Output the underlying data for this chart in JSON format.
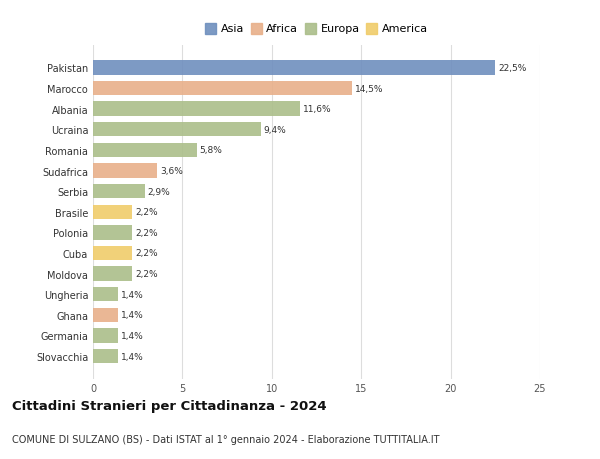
{
  "countries": [
    "Pakistan",
    "Marocco",
    "Albania",
    "Ucraina",
    "Romania",
    "Sudafrica",
    "Serbia",
    "Brasile",
    "Polonia",
    "Cuba",
    "Moldova",
    "Ungheria",
    "Ghana",
    "Germania",
    "Slovacchia"
  ],
  "values": [
    22.5,
    14.5,
    11.6,
    9.4,
    5.8,
    3.6,
    2.9,
    2.2,
    2.2,
    2.2,
    2.2,
    1.4,
    1.4,
    1.4,
    1.4
  ],
  "labels": [
    "22,5%",
    "14,5%",
    "11,6%",
    "9,4%",
    "5,8%",
    "3,6%",
    "2,9%",
    "2,2%",
    "2,2%",
    "2,2%",
    "2,2%",
    "1,4%",
    "1,4%",
    "1,4%",
    "1,4%"
  ],
  "continents": [
    "Asia",
    "Africa",
    "Europa",
    "Europa",
    "Europa",
    "Africa",
    "Europa",
    "America",
    "Europa",
    "America",
    "Europa",
    "Europa",
    "Africa",
    "Europa",
    "Europa"
  ],
  "colors": {
    "Asia": "#6f8fbe",
    "Africa": "#e8b08a",
    "Europa": "#abbe8a",
    "America": "#f0cc6a"
  },
  "legend_order": [
    "Asia",
    "Africa",
    "Europa",
    "America"
  ],
  "title": "Cittadini Stranieri per Cittadinanza - 2024",
  "subtitle": "COMUNE DI SULZANO (BS) - Dati ISTAT al 1° gennaio 2024 - Elaborazione TUTTITALIA.IT",
  "xlim": [
    0,
    25
  ],
  "xticks": [
    0,
    5,
    10,
    15,
    20,
    25
  ],
  "background_color": "#ffffff",
  "bar_height": 0.7,
  "title_fontsize": 9.5,
  "subtitle_fontsize": 7,
  "label_fontsize": 6.5,
  "ytick_fontsize": 7,
  "xtick_fontsize": 7,
  "legend_fontsize": 8
}
